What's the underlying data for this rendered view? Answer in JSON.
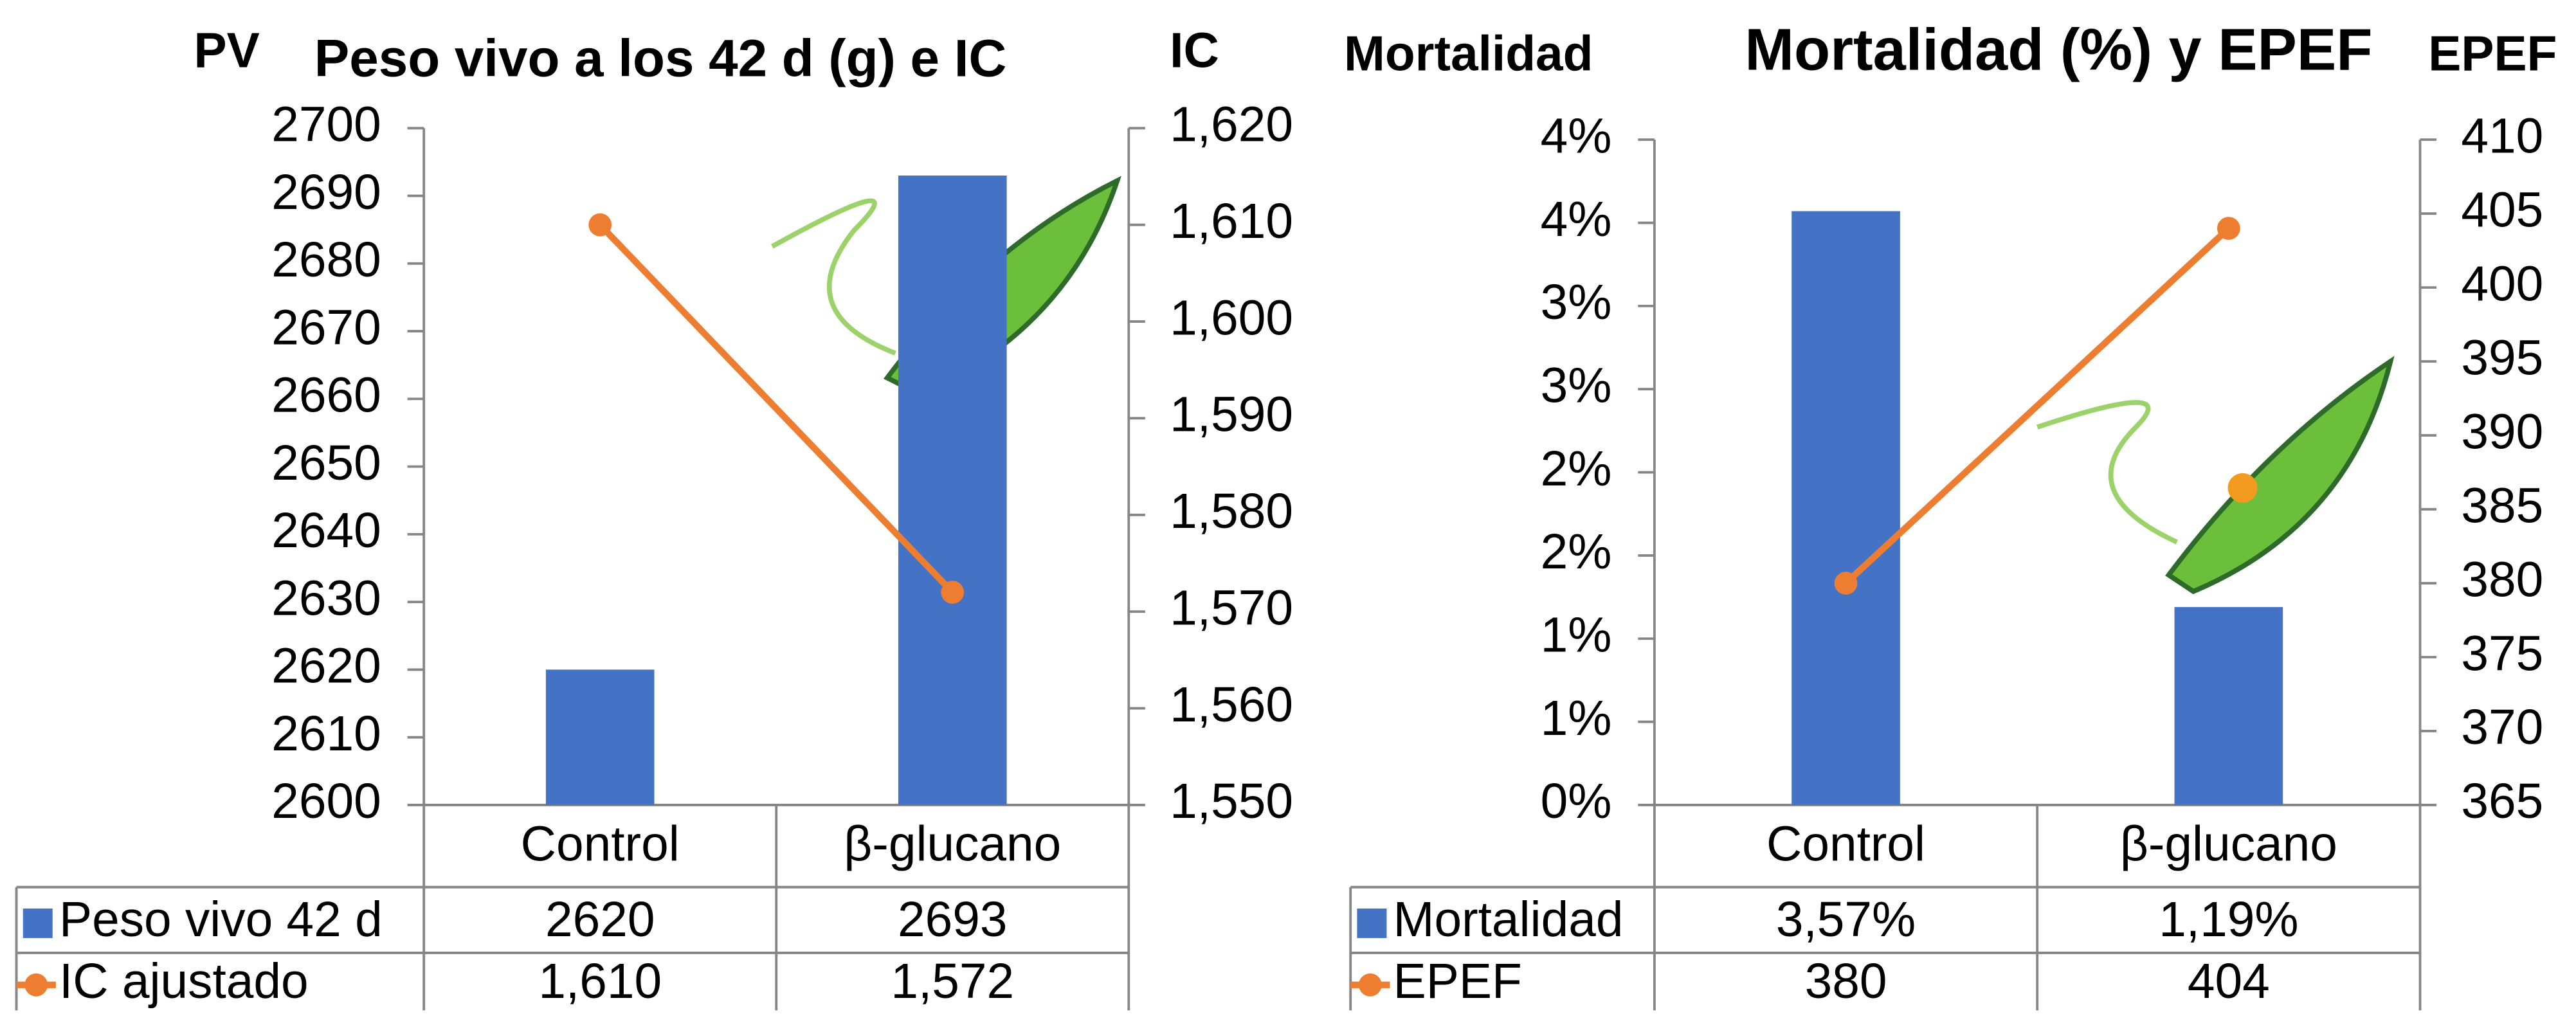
{
  "chart_data": [
    {
      "type": "combo",
      "title": "Peso vivo a los 42 d (g) e IC",
      "y_label": "PV",
      "y2_label": "IC",
      "categories": [
        "Control",
        "β-glucano"
      ],
      "series": [
        {
          "name": "Peso vivo 42 d",
          "type": "bar",
          "color": "#4472c4",
          "values": [
            2620,
            2693
          ]
        },
        {
          "name": "IC ajustado",
          "type": "line",
          "axis": "y2",
          "color": "#ed7d31",
          "values": [
            1.61,
            1.572
          ],
          "value_labels": [
            "1,610",
            "1,572"
          ]
        }
      ],
      "ylim": [
        2600,
        2700
      ],
      "yticks": [
        2600,
        2610,
        2620,
        2630,
        2640,
        2650,
        2660,
        2670,
        2680,
        2690,
        2700
      ],
      "y2lim": [
        1.55,
        1.62
      ],
      "y2ticks": [
        {
          "value": 1.55,
          "label": "1,550"
        },
        {
          "value": 1.56,
          "label": "1,560"
        },
        {
          "value": 1.57,
          "label": "1,570"
        },
        {
          "value": 1.58,
          "label": "1,580"
        },
        {
          "value": 1.59,
          "label": "1,590"
        },
        {
          "value": 1.6,
          "label": "1,600"
        },
        {
          "value": 1.61,
          "label": "1,610"
        },
        {
          "value": 1.62,
          "label": "1,620"
        }
      ]
    },
    {
      "type": "combo",
      "title": "Mortalidad (%) y EPEF",
      "y_label": "Mortalidad",
      "y2_label": "EPEF",
      "categories": [
        "Control",
        "β-glucano"
      ],
      "series": [
        {
          "name": "Mortalidad",
          "type": "bar",
          "color": "#4472c4",
          "values": [
            3.57,
            1.19
          ],
          "value_labels": [
            "3,57%",
            "1,19%"
          ]
        },
        {
          "name": "EPEF",
          "type": "line",
          "axis": "y2",
          "color": "#ed7d31",
          "values": [
            380,
            404
          ]
        }
      ],
      "ylim": [
        0,
        4
      ],
      "yticks": [
        {
          "value": 0,
          "label": "0%"
        },
        {
          "value": 0.5,
          "label": "1%"
        },
        {
          "value": 1,
          "label": "1%"
        },
        {
          "value": 1.5,
          "label": "2%"
        },
        {
          "value": 2,
          "label": "2%"
        },
        {
          "value": 2.5,
          "label": "3%"
        },
        {
          "value": 3,
          "label": "3%"
        },
        {
          "value": 3.5,
          "label": "4%"
        },
        {
          "value": 4,
          "label": "4%"
        }
      ],
      "y2lim": [
        365,
        410
      ],
      "y2ticks": [
        365,
        370,
        375,
        380,
        385,
        390,
        395,
        400,
        405,
        410
      ]
    }
  ]
}
